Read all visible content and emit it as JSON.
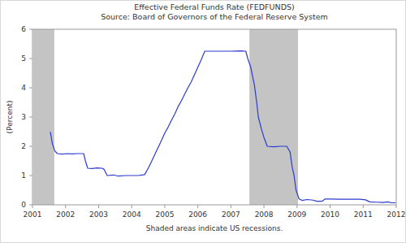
{
  "chart_data": {
    "type": "line",
    "title": "Effective Federal Funds Rate (FEDFUNDS)",
    "subtitle": "Source: Board of Governors of the Federal Reserve System",
    "ylabel": "(Percent)",
    "footnote": "Shaded areas indicate US recessions.",
    "color": "#2b3bd0",
    "grid": false,
    "xlim": [
      2001,
      2012
    ],
    "xticks": [
      2001,
      2002,
      2003,
      2004,
      2005,
      2006,
      2007,
      2008,
      2009,
      2010,
      2011,
      2012
    ],
    "ylim": [
      0,
      6
    ],
    "yticks": [
      0,
      1,
      2,
      3,
      4,
      5,
      6
    ],
    "shaded_periods": [
      {
        "start": 2001.02,
        "end": 2001.66
      },
      {
        "start": 2007.56,
        "end": 2009.03
      }
    ],
    "x": [
      2001.54,
      2001.6,
      2001.67,
      2001.75,
      2001.9,
      2002.05,
      2002.2,
      2002.35,
      2002.55,
      2002.6,
      2002.67,
      2002.8,
      2002.95,
      2003.1,
      2003.16,
      2003.26,
      2003.45,
      2003.6,
      2003.8,
      2004.0,
      2004.2,
      2004.39,
      2004.5,
      2004.6,
      2004.7,
      2004.8,
      2004.9,
      2005.0,
      2005.1,
      2005.2,
      2005.3,
      2005.4,
      2005.5,
      2005.6,
      2005.7,
      2005.8,
      2005.9,
      2006.0,
      2006.1,
      2006.21,
      2006.4,
      2006.7,
      2007.0,
      2007.3,
      2007.45,
      2007.51,
      2007.6,
      2007.71,
      2007.78,
      2007.83,
      2007.92,
      2008.0,
      2008.1,
      2008.3,
      2008.5,
      2008.69,
      2008.79,
      2008.85,
      2008.91,
      2008.97,
      2009.06,
      2009.16,
      2009.3,
      2009.48,
      2009.6,
      2009.75,
      2009.85,
      2010.0,
      2010.3,
      2010.6,
      2010.9,
      2011.07,
      2011.2,
      2011.4,
      2011.6,
      2011.75,
      2011.85,
      2011.98
    ],
    "values": [
      2.49,
      2.1,
      1.85,
      1.75,
      1.73,
      1.75,
      1.74,
      1.75,
      1.75,
      1.5,
      1.25,
      1.24,
      1.26,
      1.25,
      1.22,
      1.0,
      1.02,
      0.98,
      1.0,
      1.0,
      1.0,
      1.03,
      1.25,
      1.48,
      1.72,
      1.96,
      2.2,
      2.45,
      2.65,
      2.88,
      3.1,
      3.35,
      3.55,
      3.78,
      4.0,
      4.2,
      4.45,
      4.7,
      4.95,
      5.25,
      5.25,
      5.25,
      5.25,
      5.26,
      5.25,
      5.0,
      4.7,
      4.1,
      3.5,
      3.0,
      2.6,
      2.3,
      2.0,
      1.98,
      2.0,
      2.0,
      1.8,
      1.3,
      1.0,
      0.5,
      0.2,
      0.15,
      0.18,
      0.16,
      0.12,
      0.12,
      0.2,
      0.2,
      0.19,
      0.19,
      0.19,
      0.17,
      0.1,
      0.09,
      0.08,
      0.1,
      0.07,
      0.07
    ]
  }
}
